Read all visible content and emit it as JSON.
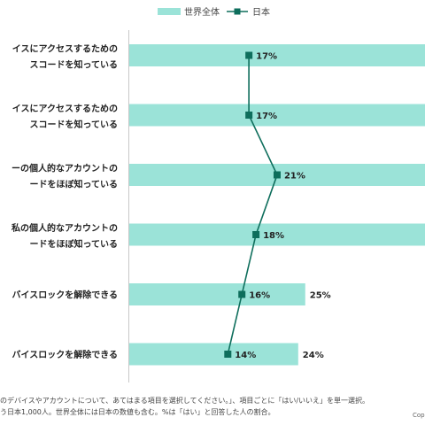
{
  "chart_data": {
    "type": "bar",
    "legend": {
      "placement": "top-center"
    },
    "categories": [
      [
        "イスにアクセスするための",
        "スコードを知っている"
      ],
      [
        "イスにアクセスするための",
        "スコードを知っている"
      ],
      [
        "ーの個人的なアカウントの",
        "ードをほぼ知っている"
      ],
      [
        "私の個人的なアカウントの",
        "ードをほぼ知っている"
      ],
      [
        "バイスロックを解除できる"
      ],
      [
        "バイスロックを解除できる"
      ]
    ],
    "series": [
      {
        "name": "世界全体",
        "kind": "bar",
        "color": "#9be3d8",
        "values": [
          null,
          null,
          null,
          null,
          25,
          24
        ],
        "labels": [
          "",
          "",
          "",
          "",
          "25%",
          "24%"
        ]
      },
      {
        "name": "日本",
        "kind": "line",
        "color": "#0e6e5c",
        "values": [
          17,
          17,
          21,
          18,
          16,
          14
        ],
        "labels": [
          "17%",
          "17%",
          "21%",
          "18%",
          "16%",
          "14%"
        ]
      }
    ],
    "notes": [
      "のデバイスやアカウントについて、あてはまる項目を選択してください。」、項目ごとに「はい/いいえ」を単一選択。",
      "う日本1,000人。世界全体には日本の数値も含む。%は「はい」と回答した人の割合。"
    ],
    "copyright": "Cop"
  }
}
